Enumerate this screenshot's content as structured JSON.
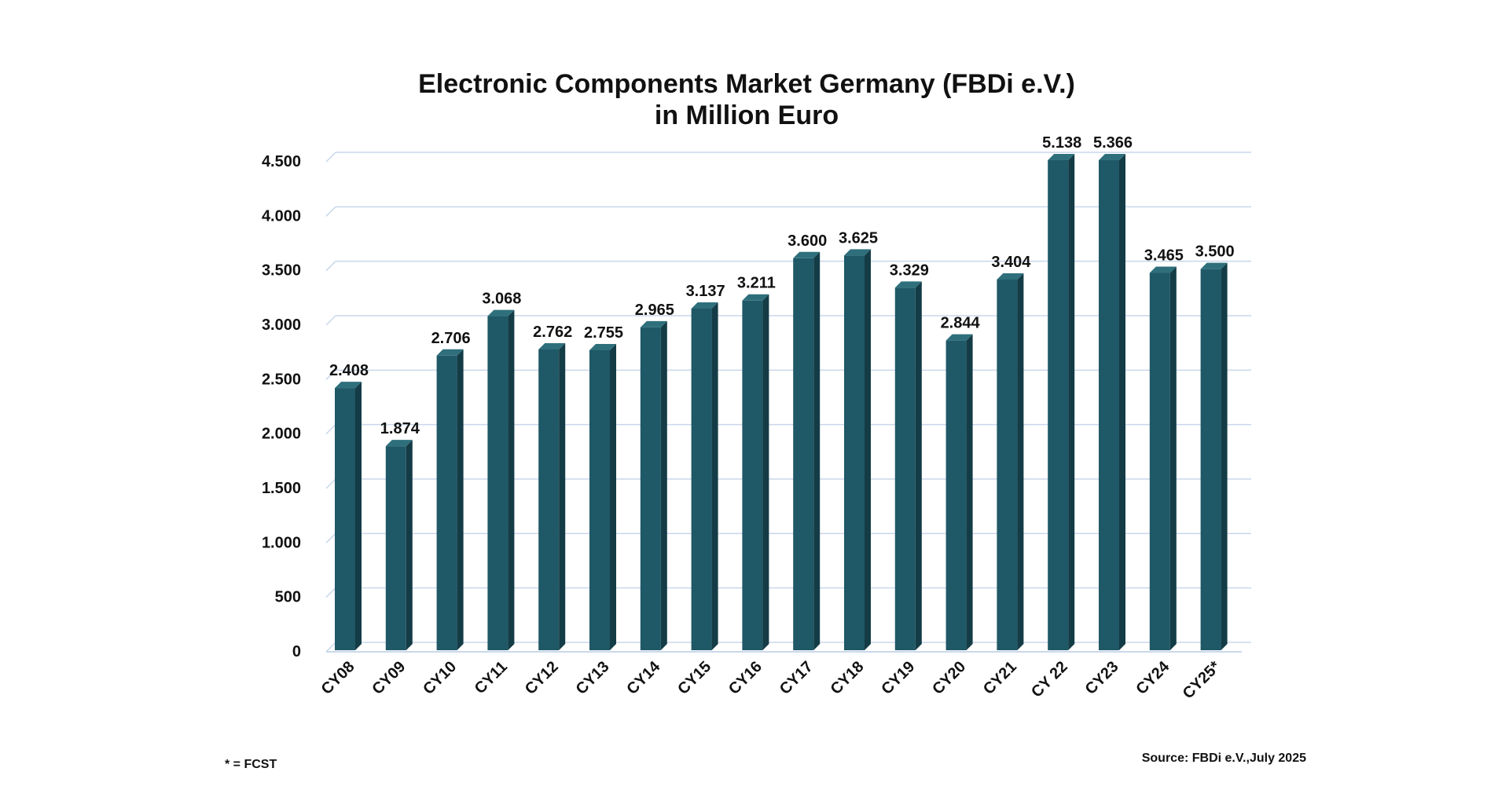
{
  "chart_data": {
    "type": "bar",
    "title": "Electronic Components Market Germany (FBDi e.V.)",
    "subtitle": "in Million Euro",
    "categories": [
      "CY08",
      "CY09",
      "CY10",
      "CY11",
      "CY12",
      "CY13",
      "CY14",
      "CY15",
      "CY16",
      "CY17",
      "CY18",
      "CY19",
      "CY20",
      "CY21",
      "CY 22",
      "CY23",
      "CY24",
      "CY25*"
    ],
    "values": [
      2408,
      1874,
      2706,
      3068,
      2762,
      2755,
      2965,
      3137,
      3211,
      3600,
      3625,
      3329,
      2844,
      3404,
      5138,
      5366,
      3465,
      3500
    ],
    "data_labels": [
      "2.408",
      "1.874",
      "2.706",
      "3.068",
      "2.762",
      "2.755",
      "2.965",
      "3.137",
      "3.211",
      "3.600",
      "3.625",
      "3.329",
      "2.844",
      "3.404",
      "5.138",
      "5.366",
      "3.465",
      "3.500"
    ],
    "y_ticks": [
      0,
      500,
      1000,
      1500,
      2000,
      2500,
      3000,
      3500,
      4000,
      4500
    ],
    "y_tick_labels": [
      "0",
      "500",
      "1.000",
      "1.500",
      "2.000",
      "2.500",
      "3.000",
      "3.500",
      "4.000",
      "4.500"
    ],
    "ylim": [
      0,
      4500
    ],
    "xlabel": "",
    "ylabel": "",
    "grid": true,
    "legend": "none",
    "colors": {
      "bar_front": "#1f5866",
      "bar_side": "#143c46",
      "bar_top": "#2f6f7c",
      "grid": "#c9d7ea"
    }
  },
  "footnote": "* = FCST",
  "source": "Source: FBDi e.V.,July 2025"
}
